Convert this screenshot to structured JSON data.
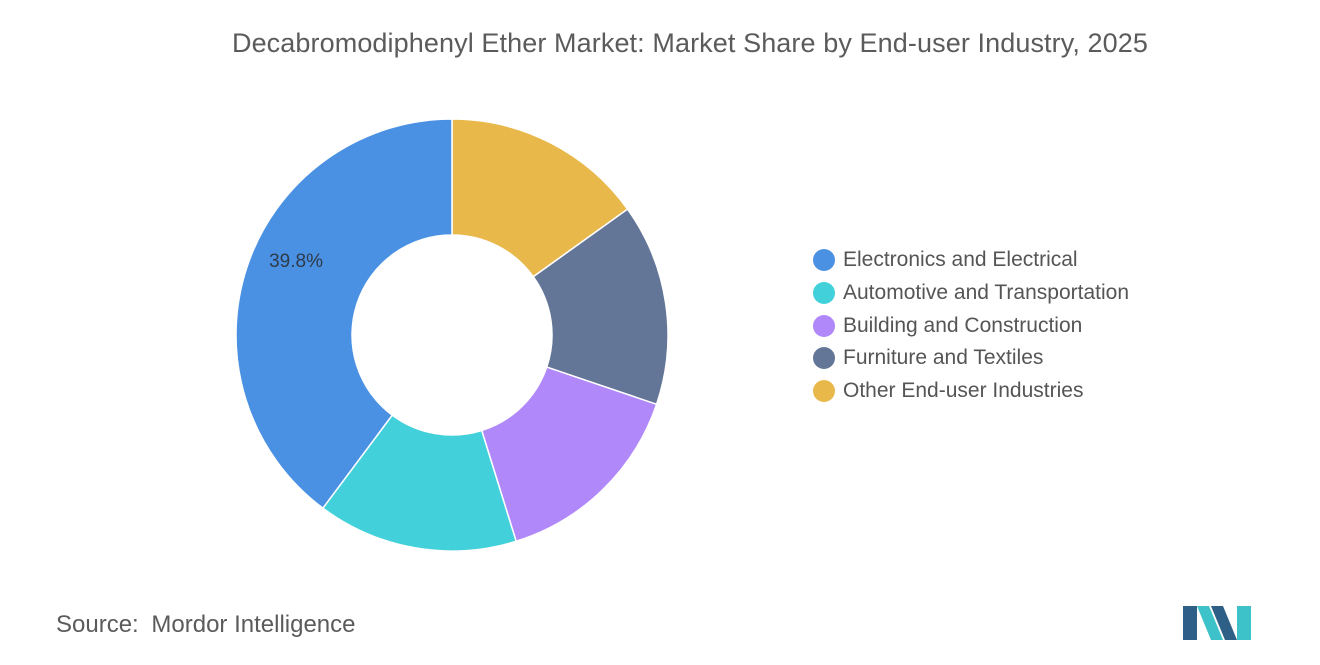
{
  "chart_data": {
    "type": "pie",
    "title": "Decabromodiphenyl Ether Market: Market Share by End-user Industry, 2025",
    "donut": true,
    "start_direction": "top, clockwise",
    "categories": [
      "Other End-user Industries",
      "Furniture and Textiles",
      "Building and Construction",
      "Automotive and Transportation",
      "Electronics and Electrical"
    ],
    "values": [
      15.1,
      15.1,
      15.0,
      15.0,
      39.8
    ],
    "colors": [
      "#e9b84b",
      "#647697",
      "#b088f9",
      "#42d1da",
      "#4a91e3"
    ],
    "data_labels": [
      "",
      "",
      "",
      "",
      "39.8%"
    ],
    "legend": {
      "position": "right",
      "items": [
        {
          "label": "Electronics and Electrical",
          "color": "#4a91e3"
        },
        {
          "label": "Automotive and Transportation",
          "color": "#42d1da"
        },
        {
          "label": "Building and Construction",
          "color": "#b088f9"
        },
        {
          "label": "Furniture and Textiles",
          "color": "#647697"
        },
        {
          "label": "Other End-user Industries",
          "color": "#e9b84b"
        }
      ]
    }
  },
  "source": {
    "label": "Source:",
    "value": "Mordor Intelligence"
  },
  "logo": {
    "icon": "mordor-intelligence-logo-icon",
    "colors": [
      "#2e5f86",
      "#3ec2c9"
    ]
  }
}
